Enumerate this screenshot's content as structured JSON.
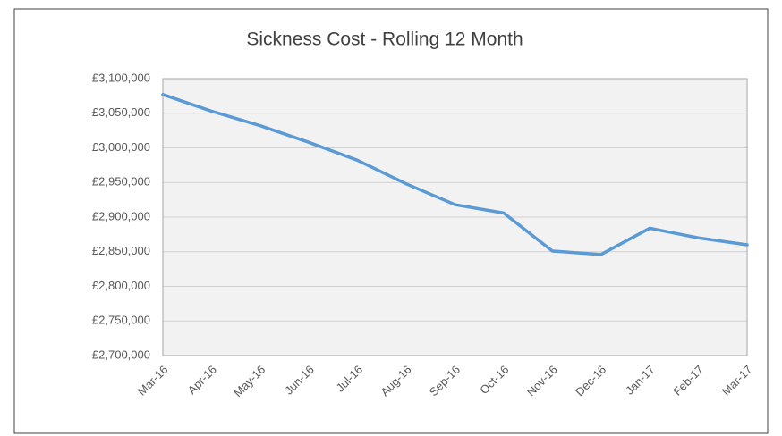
{
  "chart_data": {
    "type": "line",
    "title": "Sickness Cost - Rolling 12 Month",
    "categories": [
      "Mar-16",
      "Apr-16",
      "May-16",
      "Jun-16",
      "Jul-16",
      "Aug-16",
      "Sep-16",
      "Oct-16",
      "Nov-16",
      "Dec-16",
      "Jan-17",
      "Feb-17",
      "Mar-17"
    ],
    "series": [
      {
        "name": "Sickness Cost",
        "color": "#5b9bd5",
        "values": [
          3077000,
          3053000,
          3032000,
          3008000,
          2982000,
          2948000,
          2918000,
          2906000,
          2851000,
          2846000,
          2884000,
          2870000,
          2860000
        ]
      }
    ],
    "ylim": [
      2700000,
      3100000
    ],
    "yticks": [
      {
        "value": 2700000,
        "label": "£2,700,000"
      },
      {
        "value": 2750000,
        "label": "£2,750,000"
      },
      {
        "value": 2800000,
        "label": "£2,800,000"
      },
      {
        "value": 2850000,
        "label": "£2,850,000"
      },
      {
        "value": 2900000,
        "label": "£2,900,000"
      },
      {
        "value": 2950000,
        "label": "£2,950,000"
      },
      {
        "value": 3000000,
        "label": "£3,000,000"
      },
      {
        "value": 3050000,
        "label": "£3,050,000"
      },
      {
        "value": 3100000,
        "label": "£3,100,000"
      }
    ],
    "grid": true
  }
}
